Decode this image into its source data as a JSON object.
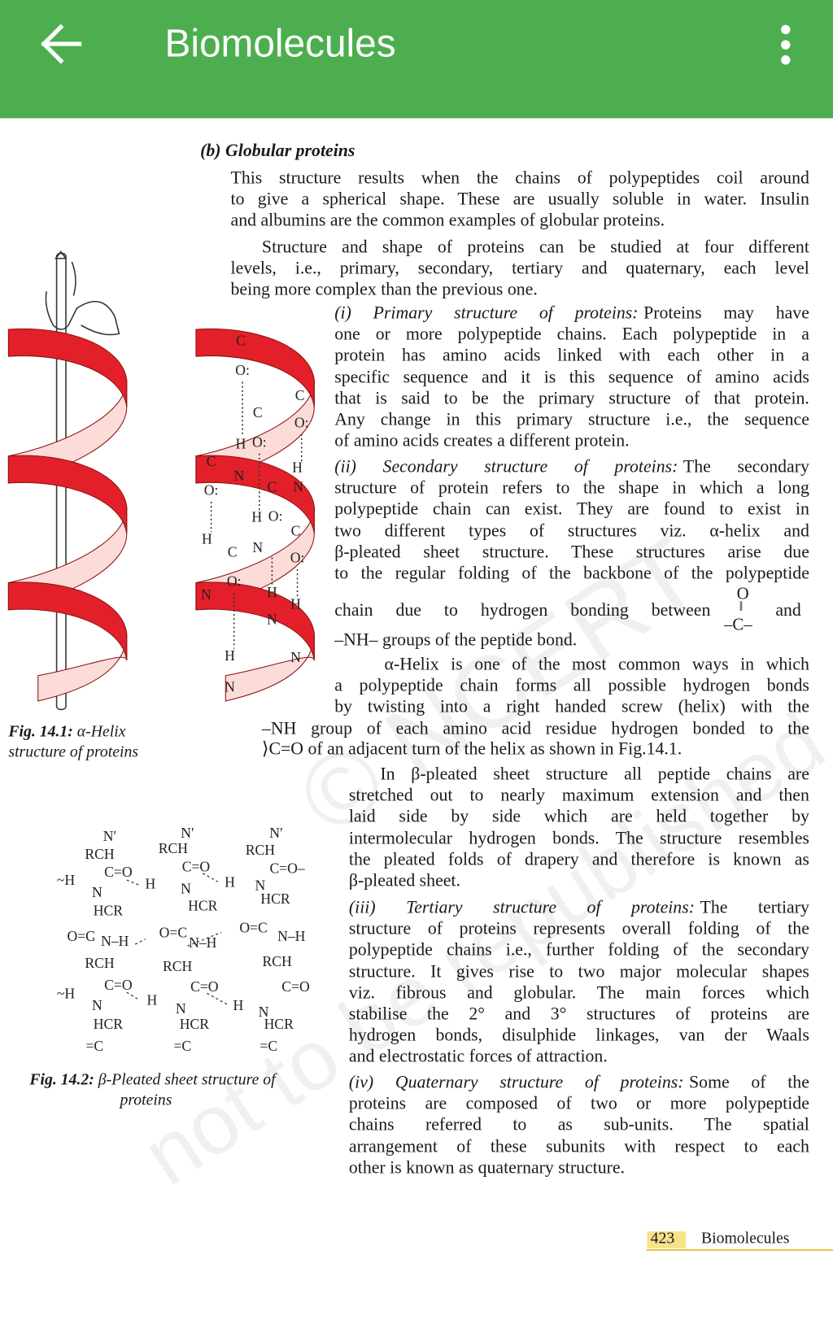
{
  "app_bar": {
    "title": "Biomolecules"
  },
  "heading": "(b) Globular proteins",
  "paragraphs": [
    {
      "lines": [
        "This structure results when the chains of polypeptides coil around",
        "to give a spherical shape. These are usually soluble in water. Insulin",
        "and albumins are the common examples of globular proteins."
      ]
    },
    {
      "lines": [
        "Structure and shape of proteins can be studied at four different",
        "levels, i.e., primary, secondary, tertiary and quaternary, each level",
        "being more complex than the previous one."
      ]
    },
    {
      "lead": "(i) Primary structure of proteins:",
      "lines": [
        "Proteins may have",
        "one or more polypeptide chains. Each polypeptide in a",
        "protein has amino acids linked with each other in a",
        "specific sequence and it is this sequence of amino acids",
        "that is said to be the primary structure of that protein.",
        "Any change in this primary structure i.e., the sequence",
        "of amino acids creates a different protein."
      ]
    },
    {
      "lead": "(ii) Secondary structure of proteins:",
      "lines": [
        "The secondary",
        "structure of protein refers to the shape in which a long",
        "polypeptide chain can exist. They are found to exist in",
        "two different types of structures viz. α-helix and",
        "β-pleated sheet structure. These structures arise due",
        "to the regular folding of the backbone of the polypeptide"
      ]
    },
    {
      "lines": [
        "α-Helix is one of the most common ways in which",
        "a polypeptide chain forms all possible hydrogen bonds",
        "by twisting into a right handed screw (helix) with the",
        "–NH group of each amino acid residue hydrogen bonded to the",
        "⟩C=O of an adjacent turn of the helix as shown in Fig.14.1."
      ]
    },
    {
      "lines": [
        "In β-pleated sheet structure all peptide chains are",
        "stretched out to nearly maximum extension and then",
        "laid side by side which are held together by",
        "intermolecular hydrogen bonds. The structure resembles",
        "the pleated folds of drapery and therefore is known as",
        "β-pleated sheet."
      ]
    },
    {
      "lead": "(iii) Tertiary structure of proteins:",
      "lines": [
        "The tertiary",
        "structure of proteins represents overall folding of the",
        "polypeptide chains i.e., further folding of the secondary",
        "structure. It gives rise to two major molecular shapes",
        "viz. fibrous and globular. The main forces which",
        "stabilise the 2° and 3° structures of proteins are",
        "hydrogen bonds, disulphide linkages, van der Waals",
        "and electrostatic forces of attraction."
      ]
    },
    {
      "lead": "(iv) Quaternary structure of proteins:",
      "lines": [
        "Some of the",
        "proteins are composed of two or more polypeptide",
        "chains referred to as sub-units. The spatial",
        "arrangement of these subunits with respect to each",
        "other is known as quaternary structure."
      ]
    }
  ],
  "formula_line": {
    "before": "chain due to hydrogen bonding between",
    "top": "O",
    "bond": "‖",
    "bottom": "–C–",
    "after": "and"
  },
  "nh_line": "–NH– groups of the peptide bond.",
  "figure_1": {
    "label": "Fig. 14.1:",
    "lines": [
      "α-Helix",
      "structure of proteins"
    ],
    "labels": [
      "C",
      "O:",
      "C",
      "O:",
      "C",
      "H",
      "O:",
      "H",
      "C",
      "N",
      "O:",
      "C",
      "N",
      "H",
      "O:",
      "H",
      "C",
      "O:",
      "N",
      "C",
      "O:",
      "N",
      "H",
      "H",
      "N",
      "H",
      "N",
      "N"
    ]
  },
  "figure_2": {
    "label": "Fig. 14.2:",
    "lines": [
      "β-Pleated sheet structure of",
      "proteins"
    ],
    "labels": [
      "N′",
      "N′",
      "N′",
      "RCH",
      "RCH",
      "RCH",
      "C=O",
      "C=O",
      "C=O–",
      "~H",
      "H",
      "H",
      "N",
      "N",
      "N",
      "HCR",
      "HCR",
      "HCR",
      "O=C",
      "O=C",
      "O=C",
      "N–H",
      "N–H",
      "N–H",
      "RCH",
      "RCH",
      "RCH",
      "C=O",
      "C=O",
      "C=O",
      "~H",
      "H",
      "H",
      "N",
      "N",
      "N",
      "HCR",
      "HCR",
      "HCR",
      "=C",
      "=C",
      "=C"
    ]
  },
  "watermark": [
    "© NCERT",
    "not to be republished"
  ],
  "footer": {
    "page": "423",
    "title": "Biomolecules"
  }
}
